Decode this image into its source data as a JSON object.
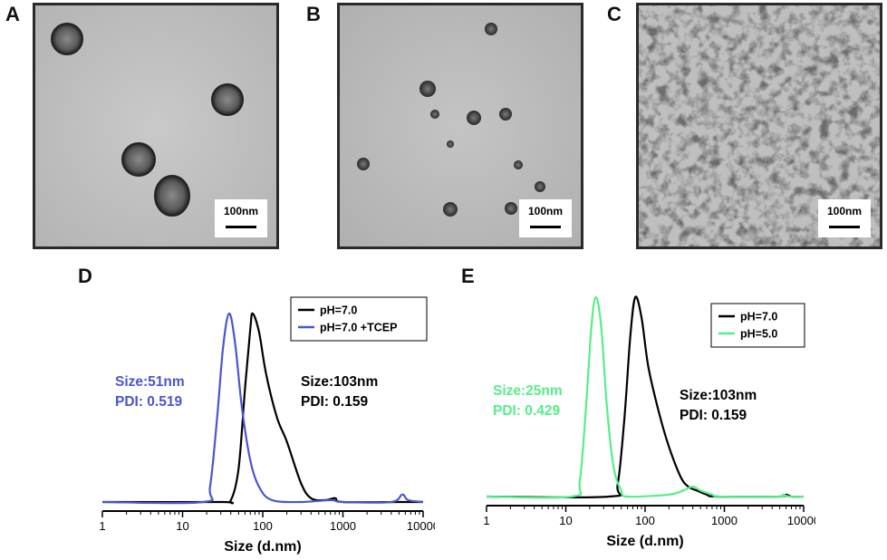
{
  "panels": {
    "A": {
      "label": "A",
      "scale": "100nm"
    },
    "B": {
      "label": "B",
      "scale": "100nm"
    },
    "C": {
      "label": "C",
      "scale": "100nm"
    }
  },
  "chart_data": [
    {
      "panel": "D",
      "type": "line",
      "xscale": "log",
      "xlim": [
        1,
        10000
      ],
      "xticks": [
        "1",
        "10",
        "100",
        "1000",
        "10000"
      ],
      "xlabel": "Size (d.nm)",
      "ylabel": "",
      "legend_position": "top-right",
      "series": [
        {
          "name": "pH=7.0",
          "color": "#000000",
          "points": [
            [
              1,
              0
            ],
            [
              30,
              0
            ],
            [
              40,
              1
            ],
            [
              50,
              18
            ],
            [
              60,
              60
            ],
            [
              70,
              92
            ],
            [
              75,
              100
            ],
            [
              90,
              90
            ],
            [
              110,
              68
            ],
            [
              150,
              45
            ],
            [
              200,
              32
            ],
            [
              300,
              10
            ],
            [
              400,
              2
            ],
            [
              600,
              1
            ],
            [
              800,
              2
            ],
            [
              1000,
              0
            ],
            [
              5000,
              0
            ],
            [
              10000,
              0
            ]
          ]
        },
        {
          "name": "pH=7.0 +TCEP",
          "color": "#4a55d0",
          "points": [
            [
              1,
              0
            ],
            [
              18,
              0
            ],
            [
              22,
              8
            ],
            [
              27,
              45
            ],
            [
              32,
              82
            ],
            [
              38,
              100
            ],
            [
              45,
              85
            ],
            [
              55,
              50
            ],
            [
              70,
              22
            ],
            [
              90,
              8
            ],
            [
              130,
              1
            ],
            [
              300,
              0
            ],
            [
              700,
              1
            ],
            [
              1000,
              0
            ],
            [
              4000,
              0
            ],
            [
              5500,
              4
            ],
            [
              6500,
              1
            ],
            [
              10000,
              0
            ]
          ]
        }
      ],
      "annotations": [
        {
          "lines": [
            "Size:51nm",
            "PDI: 0.519"
          ],
          "color": "#4a55d0"
        },
        {
          "lines": [
            "Size:103nm",
            "PDI: 0.159"
          ],
          "color": "#000000"
        }
      ]
    },
    {
      "panel": "E",
      "type": "line",
      "xscale": "log",
      "xlim": [
        1,
        10000
      ],
      "xticks": [
        "1",
        "10",
        "100",
        "1000",
        "10000"
      ],
      "xlabel": "Size (d.nm)",
      "ylabel": "",
      "legend_position": "top-right",
      "series": [
        {
          "name": "pH=7.0",
          "color": "#000000",
          "points": [
            [
              1,
              0
            ],
            [
              35,
              0
            ],
            [
              45,
              6
            ],
            [
              55,
              40
            ],
            [
              65,
              80
            ],
            [
              75,
              100
            ],
            [
              90,
              90
            ],
            [
              110,
              65
            ],
            [
              150,
              42
            ],
            [
              200,
              25
            ],
            [
              280,
              10
            ],
            [
              350,
              5
            ],
            [
              450,
              3
            ],
            [
              600,
              1
            ],
            [
              800,
              0
            ],
            [
              5000,
              0
            ],
            [
              6000,
              1
            ],
            [
              7000,
              0
            ],
            [
              10000,
              0
            ]
          ]
        },
        {
          "name": "pH=5.0",
          "color": "#55ee88",
          "points": [
            [
              1,
              0
            ],
            [
              12,
              0
            ],
            [
              15,
              8
            ],
            [
              18,
              45
            ],
            [
              21,
              85
            ],
            [
              24,
              100
            ],
            [
              28,
              85
            ],
            [
              33,
              45
            ],
            [
              40,
              15
            ],
            [
              50,
              3
            ],
            [
              60,
              0
            ],
            [
              200,
              1
            ],
            [
              300,
              3
            ],
            [
              400,
              5
            ],
            [
              500,
              3
            ],
            [
              700,
              1
            ],
            [
              900,
              0
            ],
            [
              5000,
              0
            ],
            [
              5500,
              1
            ],
            [
              6500,
              0
            ],
            [
              10000,
              0
            ]
          ]
        }
      ],
      "annotations": [
        {
          "lines": [
            "Size:25nm",
            "PDI: 0.429"
          ],
          "color": "#55ee88"
        },
        {
          "lines": [
            "Size:103nm",
            "PDI: 0.159"
          ],
          "color": "#000000"
        }
      ]
    }
  ]
}
